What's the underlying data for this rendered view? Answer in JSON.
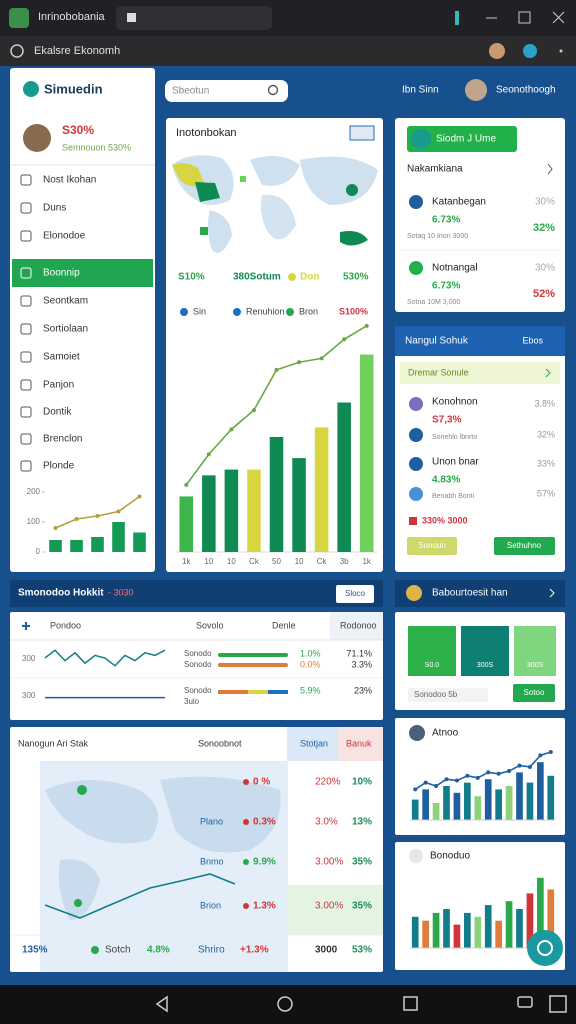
{
  "window": {
    "title": "Inrinobobania",
    "address": "Ekalsre Ekonomh"
  },
  "header": {
    "search": "Sbeotun",
    "user_short": "Ibn Sinn",
    "user_name": "Seonothoogh"
  },
  "sidebar": {
    "title": "Simuedin",
    "profile_value": "S30%",
    "profile_sub": "Semnouon 530%",
    "nav": [
      "Nost Ikohan",
      "Duns",
      "Elonodoe",
      "Boonnip",
      "Seontkam",
      "Sortiolaan",
      "Samoiet",
      "Panjon",
      "Dontik",
      "Brenclon",
      "Plonde"
    ],
    "active": 3,
    "chart": {
      "type": "bar",
      "ylim": [
        0,
        200
      ],
      "yticks": [
        0,
        100,
        200
      ],
      "series": [
        {
          "type": "bar",
          "color": "#139a55",
          "values": [
            40,
            40,
            50,
            100,
            65
          ]
        },
        {
          "type": "line",
          "color": "#b0a23a",
          "values": [
            80,
            110,
            120,
            135,
            185
          ]
        }
      ]
    }
  },
  "map_card": {
    "title": "Inotonbokan",
    "legend_top": [
      {
        "label": "S10%",
        "color": "#2aa84a"
      },
      {
        "label": "380Sotum",
        "color": "#0e8a52"
      },
      {
        "label": "Don",
        "color": "#d8d640"
      },
      {
        "label": "530%",
        "color": "#2aa84a"
      }
    ],
    "legend_bottom": [
      {
        "label": "Sin",
        "color": "#1f6fc0"
      },
      {
        "label": "Renuhion",
        "color": "#1f6fc0"
      },
      {
        "label": "Bron",
        "color": "#2aa84a"
      },
      {
        "label": "S100%",
        "color": "#d0353a"
      }
    ],
    "chart": {
      "type": "bar",
      "categories": [
        "1k",
        "10",
        "10",
        "Ck",
        "50",
        "10",
        "Ck",
        "3b",
        "1k"
      ],
      "ylim": [
        0,
        120
      ],
      "series": [
        {
          "type": "bar",
          "colors": [
            "#3cb54a",
            "#0e8a52",
            "#0e8a52",
            "#d8d640",
            "#0e8a52",
            "#0e8a52",
            "#d8d640",
            "#0e8a52",
            "#6fd05a"
          ],
          "values": [
            29,
            40,
            43,
            43,
            60,
            49,
            65,
            78,
            103
          ]
        },
        {
          "type": "line",
          "color": "#6aa843",
          "values": [
            35,
            51,
            64,
            74,
            95,
            99,
            101,
            111,
            118
          ]
        }
      ]
    }
  },
  "status_card": {
    "button": "Siodm J Ume",
    "title": "Nakamkiana",
    "items": [
      {
        "name": "Katanbegan",
        "value": "6.73%",
        "sub": "Sotaq 10 Inon 3000",
        "right_top": "30%",
        "right_bottom": "32%",
        "color": "#d0353a"
      },
      {
        "name": "Notnangal",
        "value": "6.73%",
        "sub": "Sotna 10M 3,000",
        "right_top": "30%",
        "right_bottom": "52%",
        "color": "#d0353a"
      }
    ]
  },
  "list_card": {
    "title": "Nangul Sohuk",
    "link": "Ebos",
    "banner": "Dremar Sonule",
    "items": [
      {
        "name": "Konohnon",
        "value": "S7,3%",
        "right": "3.8%",
        "color": "#d0353a"
      },
      {
        "name": "Sonehlo lbnrto",
        "value": "",
        "right": "32%",
        "color": "#2aa84a"
      },
      {
        "name": "Unon bnar",
        "value": "4.83%",
        "right": "33%",
        "color": "#2aa84a"
      },
      {
        "name": "Benabh Bonti",
        "value": "",
        "right": "57%",
        "color": "#2aa84a"
      }
    ],
    "footer": "330% 3000",
    "button_left": "Sunoun",
    "button_right": "Sethuhno"
  },
  "band": {
    "title": "Smonodoo Hokkit",
    "value": "- 3030",
    "button": "Sloco",
    "right_title": "Babourtoesit han"
  },
  "table1": {
    "headers": [
      "Pondoo",
      "Sovolo",
      "Denle",
      "Rodonoo"
    ],
    "ylim": [
      0,
      10
    ],
    "rows": [
      {
        "tick": "300",
        "spark": [
          5,
          8,
          4,
          7,
          3,
          6,
          5,
          2,
          6,
          4,
          7,
          6,
          8
        ],
        "lines": [
          {
            "label": "Sonodo",
            "value": "1.0%",
            "change": "71.1%",
            "color": "#2aa84a"
          },
          {
            "label": "Sonodo",
            "value": "0.0%",
            "change": "3.3%",
            "color": "#e07b39"
          }
        ]
      },
      {
        "tick": "300",
        "spark": [
          4,
          4,
          4,
          4,
          4,
          4,
          4,
          4,
          4,
          4,
          4,
          4,
          4
        ],
        "lines": [
          {
            "label": "Sonodo",
            "value": "5.9%",
            "change": "23%",
            "color": "#2aa84a"
          },
          {
            "label": "3ulo",
            "value": "",
            "change": "",
            "color": "#2aa84a"
          }
        ]
      }
    ]
  },
  "table2": {
    "headers": [
      "Nanogun Ari Stak",
      "Sonoobnot",
      "Stotjan",
      "Banuk"
    ],
    "rows": [
      [
        "",
        "0 %",
        "220%",
        "10%"
      ],
      [
        "Plano",
        "0.3%",
        "3.0%",
        "13%"
      ],
      [
        "Bnmo",
        "9.9%",
        "3.00%",
        "35%"
      ],
      [
        "Brion",
        "1.3%",
        "3.00%",
        "35%"
      ]
    ],
    "footer": [
      "135%",
      "Sotch",
      "4.8%",
      "Shriro",
      "+1.3%",
      "3000",
      "53%"
    ]
  },
  "tiles": {
    "labels": [
      "S0.0",
      "300S",
      "300S"
    ],
    "input": "Sonodoo 5b",
    "button": "Sotoo"
  },
  "chart_a": {
    "title": "Atnoo",
    "type": "bar",
    "ylim": [
      0,
      100
    ],
    "series": [
      {
        "type": "bar",
        "colors": [
          "#137c8a",
          "#1f5fa0",
          "#8bd27b",
          "#137c8a",
          "#1f5fa0",
          "#137c8a",
          "#8bd27b",
          "#1f5fa0",
          "#137c8a",
          "#8bd27b",
          "#1f5fa0",
          "#137c8a",
          "#1f5fa0",
          "#137c8a"
        ],
        "values": [
          30,
          45,
          25,
          50,
          40,
          55,
          35,
          60,
          45,
          50,
          70,
          55,
          85,
          65
        ]
      },
      {
        "type": "line",
        "color": "#1f5fa0",
        "values": [
          45,
          55,
          50,
          60,
          58,
          65,
          62,
          70,
          68,
          72,
          80,
          78,
          95,
          100
        ]
      }
    ]
  },
  "chart_b": {
    "title": "Bonoduo",
    "type": "bar",
    "ylim": [
      0,
      100
    ],
    "series": [
      {
        "type": "bar",
        "colors": [
          "#137c8a",
          "#e07b39",
          "#2aa84a",
          "#137c8a",
          "#d0353a",
          "#137c8a",
          "#8bd27b",
          "#137c8a",
          "#e07b39",
          "#2aa84a",
          "#137c8a",
          "#d0353a",
          "#2aa84a",
          "#e07b39"
        ],
        "values": [
          40,
          35,
          45,
          50,
          30,
          45,
          40,
          55,
          35,
          60,
          50,
          70,
          90,
          75
        ]
      }
    ]
  }
}
